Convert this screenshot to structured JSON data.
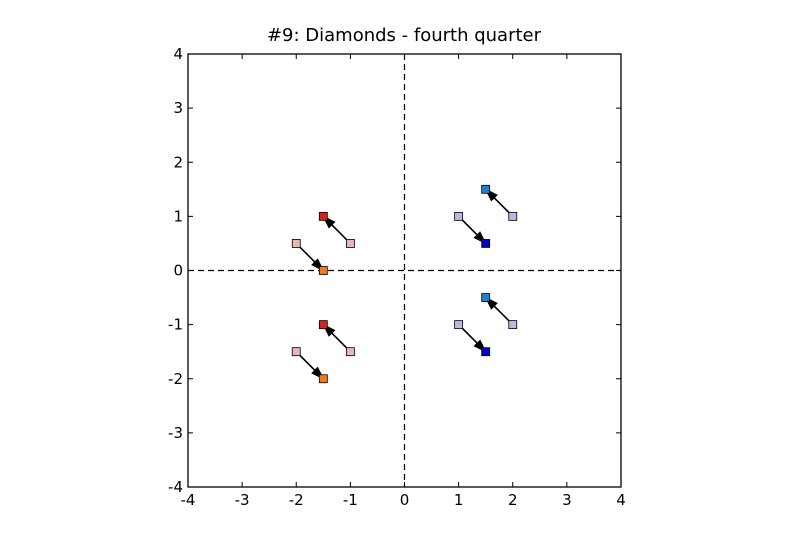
{
  "chart_data": {
    "type": "scatter",
    "title": "#9: Diamonds - fourth quarter",
    "xlabel": "",
    "ylabel": "",
    "xlim": [
      -4,
      4
    ],
    "ylim": [
      -4,
      4
    ],
    "xticks": [
      -4,
      -3,
      -2,
      -1,
      0,
      1,
      2,
      3,
      4
    ],
    "yticks": [
      -4,
      -3,
      -2,
      -1,
      0,
      1,
      2,
      3,
      4
    ],
    "x_tick_labels": [
      "-4",
      "-3",
      "-2",
      "-1",
      "0",
      "1",
      "2",
      "3",
      "4"
    ],
    "y_tick_labels": [
      "-4",
      "-3",
      "-2",
      "-1",
      "0",
      "1",
      "2",
      "3",
      "4"
    ],
    "grid": false,
    "reference_lines": [
      {
        "orientation": "vertical",
        "value": 0,
        "style": "dashed"
      },
      {
        "orientation": "horizontal",
        "value": 0,
        "style": "dashed"
      }
    ],
    "groups": [
      {
        "markers": [
          {
            "x": -2,
            "y": 0.5,
            "color": "#e6b8b8"
          },
          {
            "x": -1,
            "y": 0.5,
            "color": "#e6b8b8"
          },
          {
            "x": -1.5,
            "y": 1,
            "color": "#d62020"
          },
          {
            "x": -1.5,
            "y": 0,
            "color": "#f07820"
          }
        ],
        "arrows": [
          {
            "from": [
              -1,
              0.5
            ],
            "to": [
              -1.5,
              1
            ]
          },
          {
            "from": [
              -2,
              0.5
            ],
            "to": [
              -1.5,
              0
            ]
          }
        ]
      },
      {
        "markers": [
          {
            "x": -2,
            "y": -1.5,
            "color": "#e6b8b8"
          },
          {
            "x": -1,
            "y": -1.5,
            "color": "#e6b8b8"
          },
          {
            "x": -1.5,
            "y": -1,
            "color": "#d62020"
          },
          {
            "x": -1.5,
            "y": -2,
            "color": "#f07820"
          }
        ],
        "arrows": [
          {
            "from": [
              -1,
              -1.5
            ],
            "to": [
              -1.5,
              -1
            ]
          },
          {
            "from": [
              -2,
              -1.5
            ],
            "to": [
              -1.5,
              -2
            ]
          }
        ]
      },
      {
        "markers": [
          {
            "x": 1,
            "y": 1,
            "color": "#b8b8e0"
          },
          {
            "x": 2,
            "y": 1,
            "color": "#b8b8e0"
          },
          {
            "x": 1.5,
            "y": 1.5,
            "color": "#2080d0"
          },
          {
            "x": 1.5,
            "y": 0.5,
            "color": "#0000d0"
          }
        ],
        "arrows": [
          {
            "from": [
              2,
              1
            ],
            "to": [
              1.5,
              1.5
            ]
          },
          {
            "from": [
              1,
              1
            ],
            "to": [
              1.5,
              0.5
            ]
          }
        ]
      },
      {
        "markers": [
          {
            "x": 1,
            "y": -1,
            "color": "#b8b8e0"
          },
          {
            "x": 2,
            "y": -1,
            "color": "#b8b8e0"
          },
          {
            "x": 1.5,
            "y": -0.5,
            "color": "#2080d0"
          },
          {
            "x": 1.5,
            "y": -1.5,
            "color": "#0000d0"
          }
        ],
        "arrows": [
          {
            "from": [
              2,
              -1
            ],
            "to": [
              1.5,
              -0.5
            ]
          },
          {
            "from": [
              1,
              -1
            ],
            "to": [
              1.5,
              -1.5
            ]
          }
        ]
      }
    ]
  }
}
